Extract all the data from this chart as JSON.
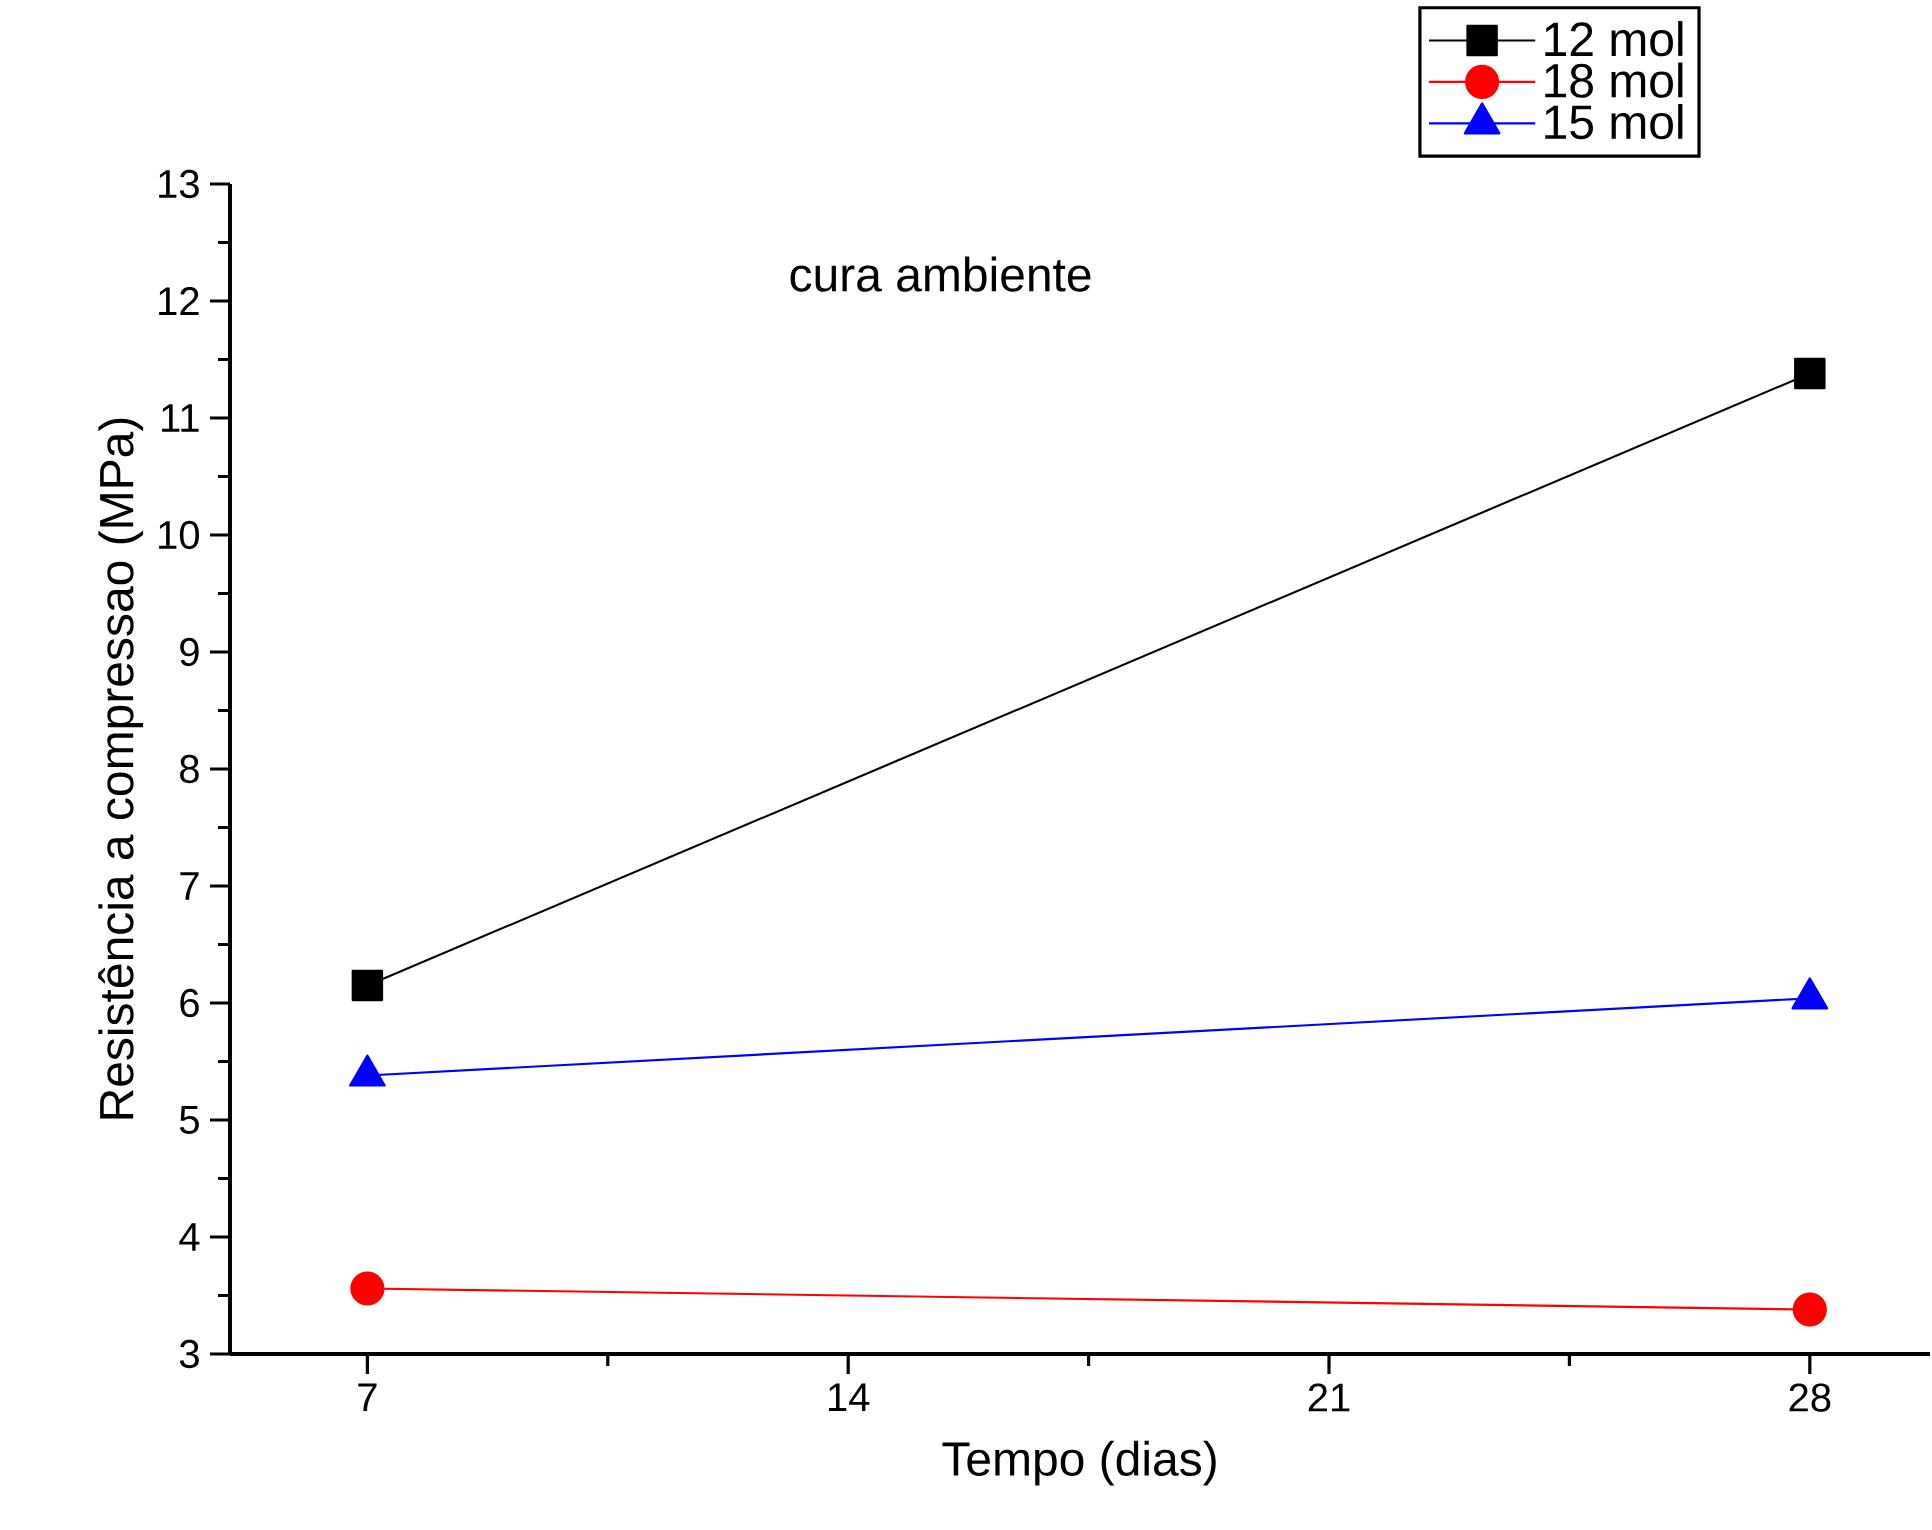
{
  "chart_data": {
    "type": "line",
    "xlabel": "Tempo (dias)",
    "ylabel": "Resistência a compressao (MPa)",
    "annotations": [
      "cura ambiente"
    ],
    "x": [
      7,
      28
    ],
    "series": [
      {
        "name": "12 mol",
        "color": "#000000",
        "marker": "square",
        "values": [
          6.15,
          11.38
        ]
      },
      {
        "name": "18 mol",
        "color": "#ff0000",
        "marker": "circle",
        "values": [
          3.56,
          3.38
        ]
      },
      {
        "name": "15 mol",
        "color": "#0000ff",
        "marker": "triangle",
        "values": [
          5.38,
          6.04
        ]
      }
    ],
    "xlim": [
      5,
      29.75
    ],
    "ylim": [
      3,
      13
    ],
    "xticks": [
      7,
      14,
      21,
      28
    ],
    "yticks": [
      3,
      4,
      5,
      6,
      7,
      8,
      9,
      10,
      11,
      12,
      13
    ],
    "grid": false,
    "legend": "top right",
    "line_style": "solid"
  }
}
